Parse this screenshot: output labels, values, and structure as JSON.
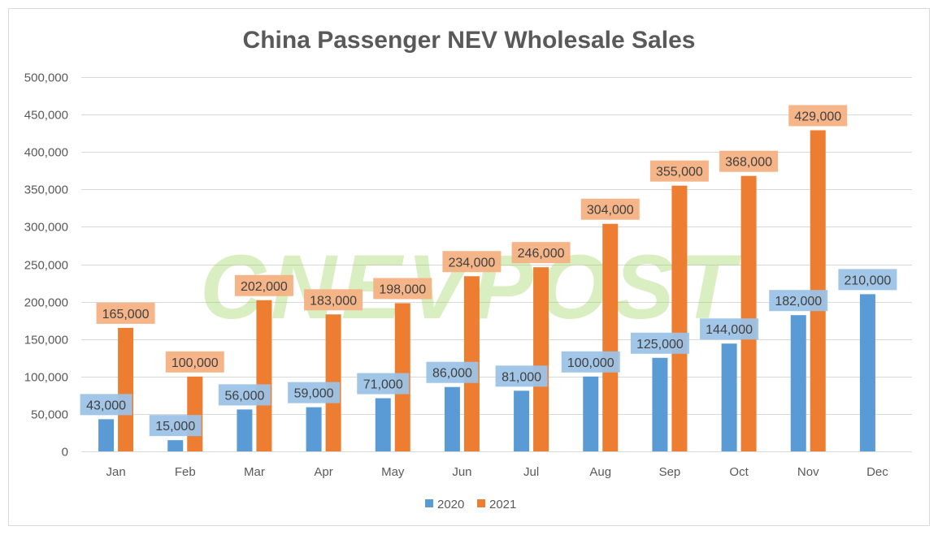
{
  "chart_data": {
    "type": "bar",
    "title": "China Passenger NEV Wholesale Sales",
    "categories": [
      "Jan",
      "Feb",
      "Mar",
      "Apr",
      "May",
      "Jun",
      "Jul",
      "Aug",
      "Sep",
      "Oct",
      "Nov",
      "Dec"
    ],
    "series": [
      {
        "name": "2020",
        "color": "#5B9BD5",
        "label_bg": "#9DC3E6",
        "values": [
          43000,
          15000,
          56000,
          59000,
          71000,
          86000,
          81000,
          100000,
          125000,
          144000,
          182000,
          210000
        ],
        "labels": [
          "43,000",
          "15,000",
          "56,000",
          "59,000",
          "71,000",
          "86,000",
          "81,000",
          "100,000",
          "125,000",
          "144,000",
          "182,000",
          "210,000"
        ]
      },
      {
        "name": "2021",
        "color": "#ED7D31",
        "label_bg": "#F4B183",
        "values": [
          165000,
          100000,
          202000,
          183000,
          198000,
          234000,
          246000,
          304000,
          355000,
          368000,
          429000,
          null
        ],
        "labels": [
          "165,000",
          "100,000",
          "202,000",
          "183,000",
          "198,000",
          "234,000",
          "246,000",
          "304,000",
          "355,000",
          "368,000",
          "429,000",
          ""
        ]
      }
    ],
    "ylim": [
      0,
      500000
    ],
    "yticks": [
      "0",
      "50,000",
      "100,000",
      "150,000",
      "200,000",
      "250,000",
      "300,000",
      "350,000",
      "400,000",
      "450,000",
      "500,000"
    ],
    "grid": true,
    "legend": "bottom",
    "xlabel": "",
    "ylabel": ""
  },
  "watermark": "CNEVPOST"
}
